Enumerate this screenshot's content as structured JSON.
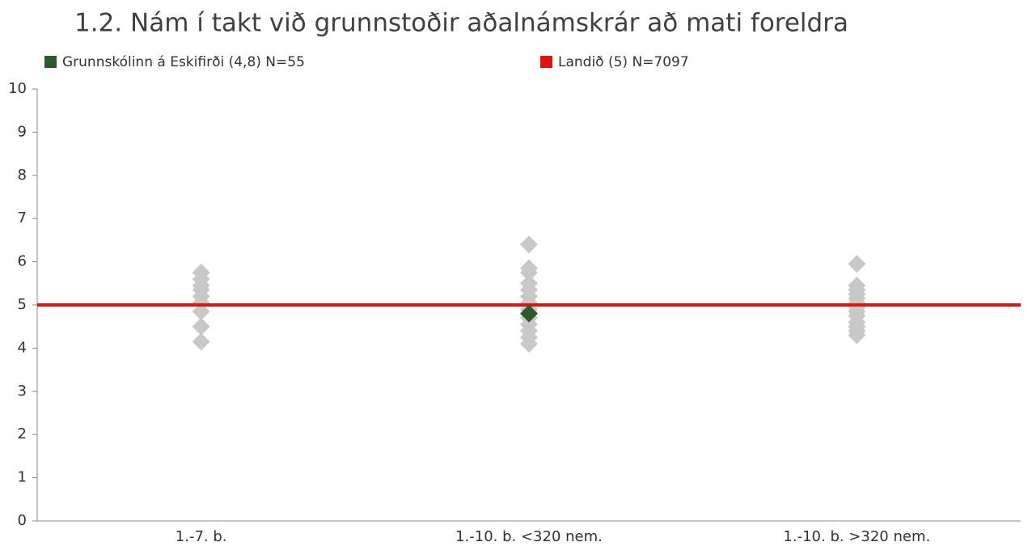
{
  "chart_data": {
    "type": "scatter",
    "title": "1.2. Nám í takt við grunnstoðir aðalnámskrár að mati foreldra",
    "categories": [
      "1.-7. b.",
      "1.-10. b. <320 nem.",
      "1.-10. b. >320 nem."
    ],
    "ylim": [
      0,
      10
    ],
    "yticks": [
      0,
      1,
      2,
      3,
      4,
      5,
      6,
      7,
      8,
      9,
      10
    ],
    "grid": false,
    "series": [
      {
        "color": "#c8c8c8",
        "kind": "diamond",
        "values": [
          [
            5.75,
            5.6,
            5.45,
            5.35,
            5.2,
            5.05,
            4.85,
            4.5,
            4.15
          ],
          [
            6.4,
            5.85,
            5.75,
            5.5,
            5.35,
            5.2,
            5.05,
            4.9,
            4.7,
            4.55,
            4.4,
            4.25,
            4.1
          ],
          [
            5.95,
            5.45,
            5.35,
            5.25,
            5.15,
            5.05,
            4.95,
            4.85,
            4.75,
            4.6,
            4.5,
            4.4,
            4.3
          ]
        ]
      },
      {
        "name": "Grunnskólinn á Eskifirði (4,8) N=55",
        "color": "#2d5a2d",
        "kind": "diamond",
        "values": [
          null,
          4.8,
          null
        ]
      },
      {
        "name": "Landið (5) N=7097",
        "color": "#e3120b",
        "kind": "hline",
        "value": 5
      }
    ]
  }
}
